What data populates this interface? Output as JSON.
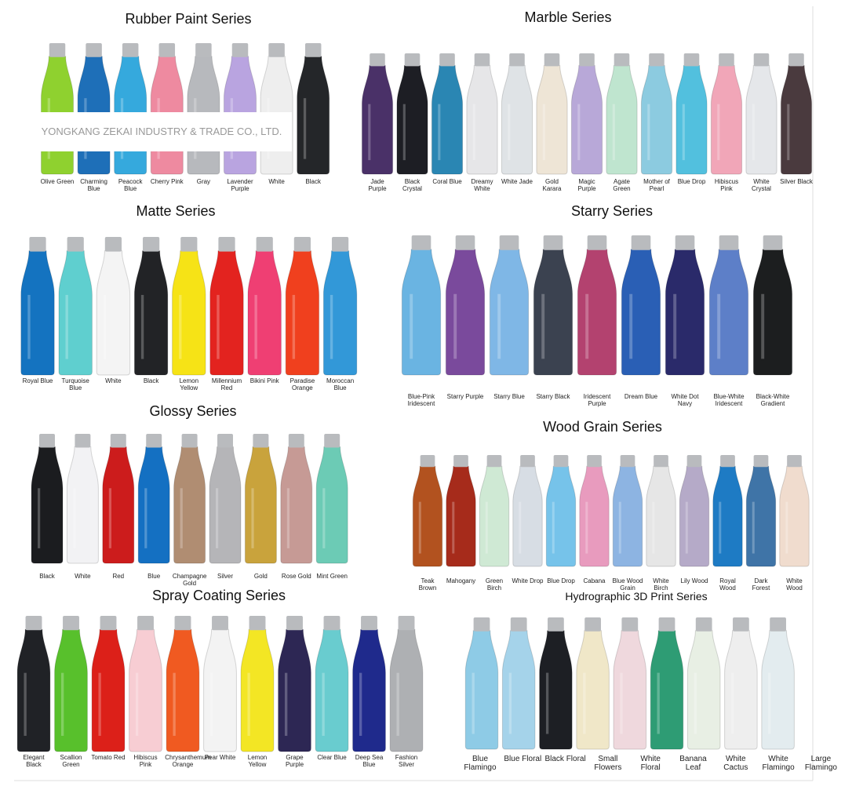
{
  "watermark": "YONGKANG ZEKAI INDUSTRY & TRADE CO., LTD.",
  "sections": [
    {
      "title": "Rubber Paint Series",
      "items": [
        {
          "name": "Olive Green",
          "color": "#8fd12f"
        },
        {
          "name": "Charming Blue",
          "color": "#1e6fb8"
        },
        {
          "name": "Peacock Blue",
          "color": "#35a9dd"
        },
        {
          "name": "Cherry Pink",
          "color": "#ee8aa0"
        },
        {
          "name": "Gray",
          "color": "#b7b9bd"
        },
        {
          "name": "Lavender Purple",
          "color": "#b9a4e0"
        },
        {
          "name": "White",
          "color": "#eeeeee"
        },
        {
          "name": "Black",
          "color": "#242629"
        }
      ]
    },
    {
      "title": "Marble Series",
      "items": [
        {
          "name": "Jade Purple",
          "color": "#4a3168"
        },
        {
          "name": "Black Crystal",
          "color": "#1d1e24"
        },
        {
          "name": "Coral Blue",
          "color": "#2a86b3"
        },
        {
          "name": "Dreamy White",
          "color": "#e6e6e8"
        },
        {
          "name": "White Jade",
          "color": "#dfe3e6"
        },
        {
          "name": "Gold Karara",
          "color": "#eee5d6"
        },
        {
          "name": "Magic Purple",
          "color": "#b8a8d8"
        },
        {
          "name": "Agate Green",
          "color": "#bfe5cf"
        },
        {
          "name": "Mother of Pearl",
          "color": "#8ccbe0"
        },
        {
          "name": "Blue Drop",
          "color": "#52c0de"
        },
        {
          "name": "Hibiscus Pink",
          "color": "#f1a6b8"
        },
        {
          "name": "White Crystal",
          "color": "#e5e7ea"
        },
        {
          "name": "Silver Black",
          "color": "#4a3a3e"
        }
      ]
    },
    {
      "title": "Matte Series",
      "items": [
        {
          "name": "Royal Blue",
          "color": "#1473c0"
        },
        {
          "name": "Turquoise Blue",
          "color": "#5fcfcf"
        },
        {
          "name": "White",
          "color": "#f4f4f4"
        },
        {
          "name": "Black",
          "color": "#222326"
        },
        {
          "name": "Lemon Yellow",
          "color": "#f6e316"
        },
        {
          "name": "Millennium Red",
          "color": "#e3231f"
        },
        {
          "name": "Bikini Pink",
          "color": "#ef3f73"
        },
        {
          "name": "Paradise Orange",
          "color": "#f0401e"
        },
        {
          "name": "Moroccan Blue",
          "color": "#3298d8"
        }
      ]
    },
    {
      "title": "Starry Series",
      "items": [
        {
          "name": "Blue-Pink Iridescent",
          "color": "#6ab4e2"
        },
        {
          "name": "Starry Purple",
          "color": "#7a4a9c"
        },
        {
          "name": "Starry Blue",
          "color": "#7fb7e6"
        },
        {
          "name": "Starry Black",
          "color": "#3b4250"
        },
        {
          "name": "Iridescent Purple",
          "color": "#b3426f"
        },
        {
          "name": "Dream Blue",
          "color": "#2a5fb5"
        },
        {
          "name": "White Dot Navy",
          "color": "#2a2a6a"
        },
        {
          "name": "Blue-White Iridescent",
          "color": "#5d7fc8"
        },
        {
          "name": "Black-White Gradient",
          "color": "#1c1e1f"
        }
      ]
    },
    {
      "title": "Glossy Series",
      "items": [
        {
          "name": "Black",
          "color": "#1b1c1f"
        },
        {
          "name": "White",
          "color": "#f2f2f4"
        },
        {
          "name": "Red",
          "color": "#cc1c1c"
        },
        {
          "name": "Blue",
          "color": "#1470c2"
        },
        {
          "name": "Champagne Gold",
          "color": "#b08d72"
        },
        {
          "name": "Silver",
          "color": "#b5b5b8"
        },
        {
          "name": "Gold",
          "color": "#c9a33c"
        },
        {
          "name": "Rose Gold",
          "color": "#c69a95"
        },
        {
          "name": "Mint Green",
          "color": "#6ccbb5"
        }
      ]
    },
    {
      "title": "Wood Grain Series",
      "items": [
        {
          "name": "Teak Brown",
          "color": "#b2521f"
        },
        {
          "name": "Mahogany",
          "color": "#a62b1b"
        },
        {
          "name": "Green Birch",
          "color": "#cfe9d4"
        },
        {
          "name": "White Drop",
          "color": "#d7dde4"
        },
        {
          "name": "Blue Drop",
          "color": "#76c3ea"
        },
        {
          "name": "Cabana",
          "color": "#e89bbe"
        },
        {
          "name": "Blue Wood Grain",
          "color": "#8db4e2"
        },
        {
          "name": "White Birch",
          "color": "#e6e6e6"
        },
        {
          "name": "Lily Wood",
          "color": "#b5aac8"
        },
        {
          "name": "Royal Wood",
          "color": "#1e7bc4"
        },
        {
          "name": "Dark Forest",
          "color": "#3f74a7"
        },
        {
          "name": "White Wood",
          "color": "#f0dcce"
        }
      ]
    },
    {
      "title": "Spray Coating Series",
      "items": [
        {
          "name": "Elegant Black",
          "color": "#202226"
        },
        {
          "name": "Scallion Green",
          "color": "#58c02c"
        },
        {
          "name": "Tomato Red",
          "color": "#dc2019"
        },
        {
          "name": "Hibiscus Pink",
          "color": "#f7cdd3"
        },
        {
          "name": "Chrysanthemum Orange",
          "color": "#f05a21"
        },
        {
          "name": "Pear White",
          "color": "#f3f3f3"
        },
        {
          "name": "Lemon Yellow",
          "color": "#f3e624"
        },
        {
          "name": "Grape Purple",
          "color": "#2d2754"
        },
        {
          "name": "Clear Blue",
          "color": "#69cccf"
        },
        {
          "name": "Deep Sea Blue",
          "color": "#1f2a8c"
        },
        {
          "name": "Fashion Silver",
          "color": "#aeb0b3"
        }
      ]
    },
    {
      "title": "Hydrographic 3D Print Series",
      "items": [
        {
          "name": "Blue Flamingo",
          "color": "#8ecbe6"
        },
        {
          "name": "Blue Floral",
          "color": "#a5d3ea"
        },
        {
          "name": "Black Floral",
          "color": "#1d1f24"
        },
        {
          "name": "Small Flowers",
          "color": "#f0e7c8"
        },
        {
          "name": "White Floral",
          "color": "#efd8dd"
        },
        {
          "name": "Banana Leaf",
          "color": "#2e9c74"
        },
        {
          "name": "White Cactus",
          "color": "#e8efe4"
        },
        {
          "name": "White Flamingo",
          "color": "#eeeeee"
        },
        {
          "name": "Large Flamingo",
          "color": "#e3ecef"
        }
      ]
    }
  ]
}
